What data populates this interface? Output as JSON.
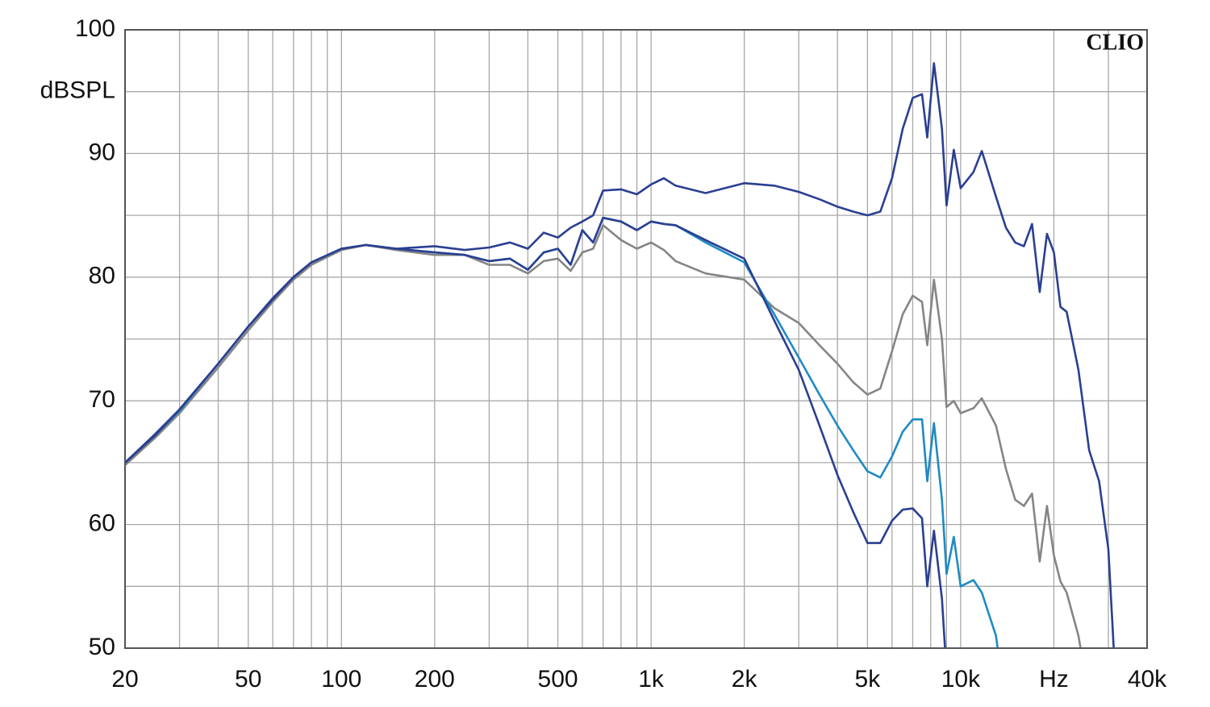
{
  "chart_data": {
    "type": "line",
    "watermark": "CLIO",
    "xscale": "log",
    "grid": true,
    "xlim": [
      20,
      40000
    ],
    "ylim": [
      50,
      100
    ],
    "xticks": [
      20,
      50,
      100,
      200,
      500,
      {
        "value": 1000,
        "label": "1k"
      },
      {
        "value": 2000,
        "label": "2k"
      },
      {
        "value": 5000,
        "label": "5k"
      },
      {
        "value": 10000,
        "label": "10k"
      },
      {
        "value": 20000,
        "label": "Hz"
      },
      {
        "value": 40000,
        "label": "40k"
      }
    ],
    "xgrid": [
      30,
      40,
      60,
      70,
      80,
      90,
      300,
      400,
      600,
      700,
      800,
      900,
      3000,
      4000,
      6000,
      7000,
      8000,
      9000,
      30000
    ],
    "yticks": [
      50,
      60,
      70,
      80,
      90,
      {
        "value": 95,
        "label": "dBSPL"
      },
      100
    ],
    "ygrid": [
      55,
      65,
      75,
      85
    ],
    "x": [
      20,
      25,
      30,
      40,
      50,
      60,
      70,
      80,
      100,
      120,
      150,
      200,
      250,
      300,
      350,
      400,
      450,
      500,
      550,
      600,
      650,
      700,
      800,
      900,
      1000,
      1100,
      1200,
      1500,
      2000,
      2500,
      3000,
      3500,
      4000,
      4500,
      5000,
      5500,
      6000,
      6500,
      7000,
      7500,
      7800,
      8200,
      8700,
      9000,
      9500,
      10000,
      11000,
      11700,
      13000,
      14000,
      15000,
      16000,
      17000,
      18000,
      19000,
      20000,
      21000,
      22000,
      24000,
      26000,
      28000,
      30000,
      32000
    ],
    "series": [
      {
        "color": "#858585",
        "values": [
          64.8,
          67,
          69,
          72.7,
          75.7,
          78,
          79.8,
          81,
          82.2,
          82.6,
          82.2,
          81.8,
          81.8,
          81,
          81,
          80.3,
          81.3,
          81.5,
          80.5,
          82,
          82.3,
          84.2,
          83,
          82.3,
          82.8,
          82.2,
          81.3,
          80.3,
          79.8,
          77.5,
          76.3,
          74.5,
          73,
          71.5,
          70.5,
          71,
          74,
          77,
          78.5,
          78,
          74.5,
          79.8,
          75,
          69.5,
          70,
          69,
          69.4,
          70.2,
          68,
          64.5,
          62,
          61.5,
          62.5,
          57,
          61.5,
          57.5,
          55.4,
          54.5,
          51,
          46,
          null,
          null,
          null
        ]
      },
      {
        "color": "#1e8bc3",
        "values": [
          65,
          67.2,
          69.2,
          73,
          76,
          78.2,
          80,
          81.2,
          82.3,
          82.6,
          82.3,
          82,
          81.8,
          81.3,
          81.5,
          80.6,
          82,
          82.3,
          81,
          83.8,
          82.8,
          84.8,
          84.5,
          83.8,
          84.5,
          84.3,
          84.2,
          82.8,
          81.2,
          77,
          73.5,
          70.5,
          68,
          66,
          64.3,
          63.8,
          65.5,
          67.5,
          68.5,
          68.5,
          63.5,
          68.2,
          62,
          56,
          59,
          55,
          55.5,
          54.5,
          51,
          45,
          null,
          null,
          null,
          null,
          null,
          null,
          null,
          null,
          null,
          null,
          null,
          null,
          null
        ]
      },
      {
        "color": "#2b3f91",
        "values": [
          65,
          67.3,
          69.3,
          73,
          76,
          78.2,
          80,
          81.2,
          82.3,
          82.6,
          82.3,
          82,
          81.8,
          81.3,
          81.5,
          80.6,
          82,
          82.3,
          81,
          83.8,
          82.8,
          84.8,
          84.5,
          83.8,
          84.5,
          84.3,
          84.2,
          83,
          81.5,
          76.5,
          72.5,
          68,
          64,
          61,
          58.5,
          58.5,
          60.3,
          61.2,
          61.3,
          60.5,
          55,
          59.5,
          54,
          48,
          null,
          null,
          null,
          null,
          null,
          null,
          null,
          null,
          null,
          null,
          null,
          null,
          null,
          null,
          null,
          null,
          null,
          null,
          null
        ]
      },
      {
        "color": "#2b3f91",
        "values": [
          65,
          67.2,
          69.3,
          73,
          76,
          78.3,
          80,
          81.2,
          82.3,
          82.6,
          82.3,
          82.5,
          82.2,
          82.4,
          82.8,
          82.3,
          83.6,
          83.2,
          84,
          84.5,
          85,
          87,
          87.1,
          86.7,
          87.5,
          88,
          87.4,
          86.8,
          87.6,
          87.4,
          86.9,
          86.3,
          85.7,
          85.3,
          85,
          85.3,
          88,
          92,
          94.5,
          94.8,
          91.3,
          97.3,
          92,
          85.8,
          90.3,
          87.2,
          88.5,
          90.2,
          86.5,
          84,
          82.8,
          82.5,
          84.3,
          78.8,
          83.5,
          82,
          77.6,
          77.2,
          72.5,
          66,
          63.5,
          58,
          45
        ]
      }
    ]
  }
}
